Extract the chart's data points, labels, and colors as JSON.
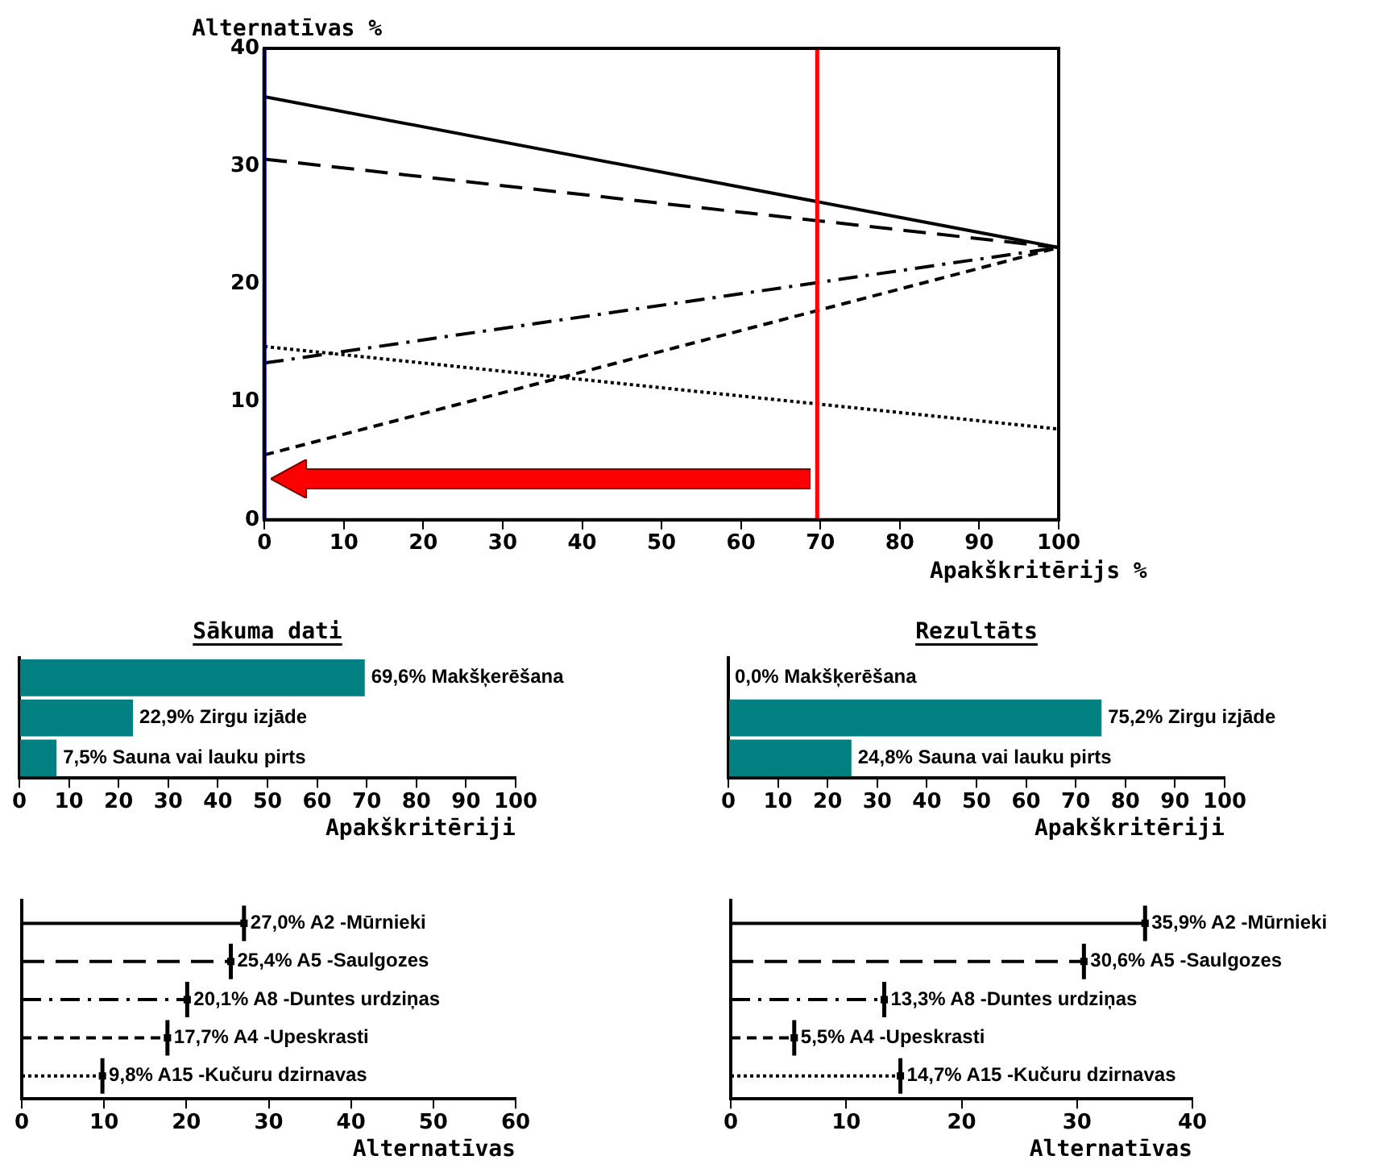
{
  "chart_data": [
    {
      "type": "line",
      "xlabel": "Apakškritērijs %",
      "ylabel": "Alternatīvas %",
      "xlim": [
        0,
        100
      ],
      "xticks": [
        0,
        10,
        20,
        30,
        40,
        50,
        60,
        70,
        80,
        90,
        100
      ],
      "ylim": [
        0,
        40
      ],
      "yticks": [
        0,
        10,
        20,
        30,
        40
      ],
      "grid": false,
      "legend": false,
      "marker": "none",
      "x": [
        0,
        100
      ],
      "series": [
        {
          "color": "#000000",
          "line_style": "solid",
          "values": [
            35.9,
            23.1
          ]
        },
        {
          "color": "#000000",
          "line_style": "longdash",
          "values": [
            30.6,
            23.1
          ]
        },
        {
          "color": "#000000",
          "line_style": "dashdot",
          "values": [
            13.3,
            23.1
          ]
        },
        {
          "color": "#000000",
          "line_style": "dashed",
          "values": [
            5.5,
            23.1
          ]
        },
        {
          "color": "#000000",
          "line_style": "dotted",
          "values": [
            14.7,
            7.7
          ]
        }
      ],
      "ref_lines": [
        {
          "axis": "x",
          "value": 69.6,
          "color": "#ff0000"
        },
        {
          "axis": "x",
          "value": 0,
          "color": "#0000ff"
        }
      ]
    },
    {
      "type": "bar",
      "orientation": "horizontal",
      "title": "Sākuma dati",
      "xlabel": "Apakškritēriji",
      "categories": [
        "Makšķerēšana",
        "Zirgu izjāde",
        "Sauna vai lauku pirts"
      ],
      "values": [
        69.6,
        22.9,
        7.5
      ],
      "value_labels": [
        "69,6%",
        "22,9%",
        "7,5%"
      ],
      "color": "#008080",
      "xlim": [
        0,
        100
      ],
      "xticks": [
        0,
        10,
        20,
        30,
        40,
        50,
        60,
        70,
        80,
        90,
        100
      ],
      "tick_labels": "x",
      "grid": false,
      "legend": false
    },
    {
      "type": "bar",
      "orientation": "horizontal",
      "title": "Rezultāts",
      "xlabel": "Apakškritēriji",
      "categories": [
        "Makšķerēšana",
        "Zirgu izjāde",
        "Sauna vai lauku pirts"
      ],
      "values": [
        0.0,
        75.2,
        24.8
      ],
      "value_labels": [
        "0,0%",
        "75,2%",
        "24,8%"
      ],
      "color": "#008080",
      "xlim": [
        0,
        100
      ],
      "xticks": [
        0,
        10,
        20,
        30,
        40,
        50,
        60,
        70,
        80,
        90,
        100
      ],
      "tick_labels": "x",
      "grid": false,
      "legend": false
    },
    {
      "type": "lollipop",
      "orientation": "horizontal",
      "xlabel": "Alternatīvas",
      "categories": [
        null,
        null,
        null,
        null,
        null
      ],
      "xlim": [
        0,
        60
      ],
      "xticks": [
        0,
        10,
        20,
        30,
        40,
        50,
        60
      ],
      "tick_labels": "x",
      "grid": false,
      "legend": false,
      "series": [
        {
          "name": "A2 -Mūrnieki",
          "color": "#000000",
          "line_style": "solid",
          "values": [
            27.0,
            null,
            null,
            null,
            null
          ],
          "value_labels": [
            "27,0%",
            null,
            null,
            null,
            null
          ]
        },
        {
          "name": "A5 -Saulgozes",
          "color": "#000000",
          "line_style": "longdash",
          "values": [
            null,
            25.4,
            null,
            null,
            null
          ],
          "value_labels": [
            null,
            "25,4%",
            null,
            null,
            null
          ]
        },
        {
          "name": "A8 -Duntes urdziņas",
          "color": "#000000",
          "line_style": "dashdot",
          "values": [
            null,
            null,
            20.1,
            null,
            null
          ],
          "value_labels": [
            null,
            null,
            "20,1%",
            null,
            null
          ]
        },
        {
          "name": "A4 -Upeskrasti",
          "color": "#000000",
          "line_style": "dashed",
          "values": [
            null,
            null,
            null,
            17.7,
            null
          ],
          "value_labels": [
            null,
            null,
            null,
            "17,7%",
            null
          ]
        },
        {
          "name": "A15 -Kučuru dzirnavas",
          "color": "#000000",
          "line_style": "dotted",
          "values": [
            null,
            null,
            null,
            null,
            9.8
          ],
          "value_labels": [
            null,
            null,
            null,
            null,
            "9,8%"
          ]
        }
      ]
    },
    {
      "type": "lollipop",
      "orientation": "horizontal",
      "xlabel": "Alternatīvas",
      "categories": [
        null,
        null,
        null,
        null,
        null
      ],
      "xlim": [
        0,
        40
      ],
      "xticks": [
        0,
        10,
        20,
        30,
        40
      ],
      "tick_labels": "x",
      "grid": false,
      "legend": false,
      "series": [
        {
          "name": "A2 -Mūrnieki",
          "color": "#000000",
          "line_style": "solid",
          "values": [
            35.9,
            null,
            null,
            null,
            null
          ],
          "value_labels": [
            "35,9%",
            null,
            null,
            null,
            null
          ]
        },
        {
          "name": "A5 -Saulgozes",
          "color": "#000000",
          "line_style": "longdash",
          "values": [
            null,
            30.6,
            null,
            null,
            null
          ],
          "value_labels": [
            null,
            "30,6%",
            null,
            null,
            null
          ]
        },
        {
          "name": "A8 -Duntes urdziņas",
          "color": "#000000",
          "line_style": "dashdot",
          "values": [
            null,
            null,
            13.3,
            null,
            null
          ],
          "value_labels": [
            null,
            null,
            "13,3%",
            null,
            null
          ]
        },
        {
          "name": "A4 -Upeskrasti",
          "color": "#000000",
          "line_style": "dashed",
          "values": [
            null,
            null,
            null,
            5.5,
            null
          ],
          "value_labels": [
            null,
            null,
            null,
            "5,5%",
            null
          ]
        },
        {
          "name": "A15 -Kučuru dzirnavas",
          "color": "#000000",
          "line_style": "dotted",
          "values": [
            null,
            null,
            null,
            null,
            14.7
          ],
          "value_labels": [
            null,
            null,
            null,
            null,
            "14,7%"
          ]
        }
      ]
    }
  ]
}
